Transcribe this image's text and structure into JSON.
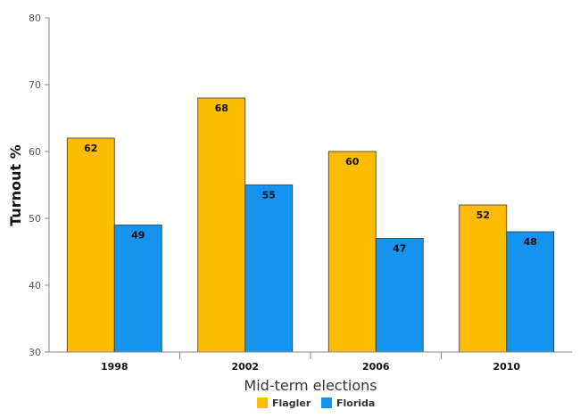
{
  "chart_data": {
    "type": "bar",
    "categories": [
      "1998",
      "2002",
      "2006",
      "2010"
    ],
    "series": [
      {
        "name": "Flagler",
        "values": [
          62,
          68,
          60,
          52
        ],
        "color": "#FDBC00"
      },
      {
        "name": "Florida",
        "values": [
          49,
          55,
          47,
          48
        ],
        "color": "#1593EE"
      }
    ],
    "xlabel": "Mid-term elections",
    "ylabel": "Turnout %",
    "ylim": [
      30,
      80
    ],
    "yticks": [
      30,
      40,
      50,
      60,
      70,
      80
    ],
    "grid": false,
    "legend": "bottom-center",
    "data_labels": true
  }
}
